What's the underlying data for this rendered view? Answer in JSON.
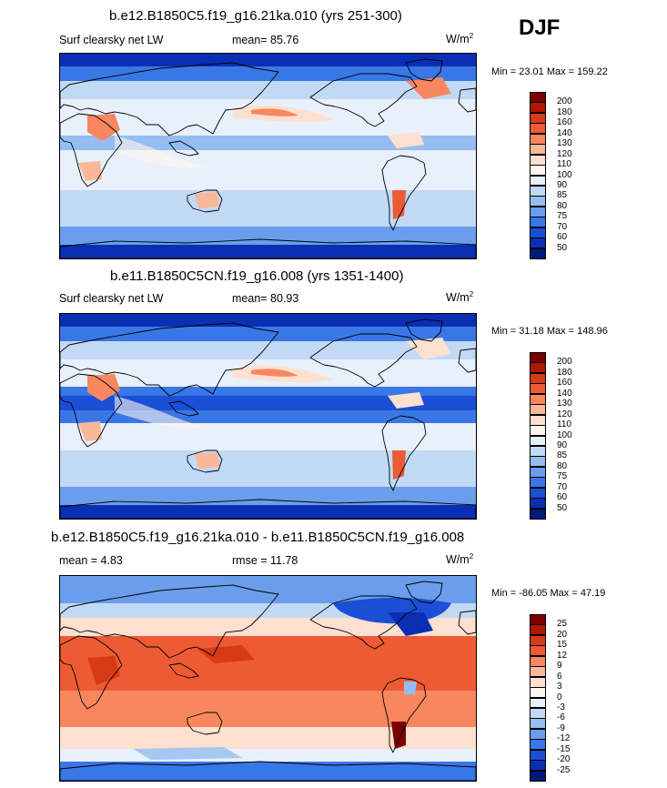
{
  "season": "DJF",
  "panels": [
    {
      "title": "b.e12.B1850C5.f19_g16.21ka.010 (yrs 251-300)",
      "left_text": "Surf clearsky net LW",
      "mean_text": "mean=  85.76",
      "units_main": "W/m",
      "units_exp": "2",
      "minmax": "Min = 23.01 Max = 159.22",
      "colorbar": {
        "labels": [
          "200",
          "180",
          "160",
          "140",
          "130",
          "120",
          "110",
          "100",
          "90",
          "85",
          "80",
          "75",
          "70",
          "60",
          "50"
        ],
        "colors": [
          "#7a0000",
          "#b01800",
          "#d63a16",
          "#ee5a34",
          "#f8875f",
          "#fbb79a",
          "#fde0cf",
          "#fff7ee",
          "#e8f0fb",
          "#c2d9f6",
          "#95bdf0",
          "#6a9deb",
          "#3a77e6",
          "#1b4fd6",
          "#0a2fb4",
          "#001a78"
        ]
      },
      "field_mode": "abs1"
    },
    {
      "title": "b.e11.B1850C5CN.f19_g16.008 (yrs 1351-1400)",
      "left_text": "Surf clearsky net LW",
      "mean_text": "mean=  80.93",
      "units_main": "W/m",
      "units_exp": "2",
      "minmax": "Min = 31.18 Max = 148.96",
      "colorbar": {
        "labels": [
          "200",
          "180",
          "160",
          "140",
          "130",
          "120",
          "110",
          "100",
          "90",
          "85",
          "80",
          "75",
          "70",
          "60",
          "50"
        ],
        "colors": [
          "#7a0000",
          "#b01800",
          "#d63a16",
          "#ee5a34",
          "#f8875f",
          "#fbb79a",
          "#fde0cf",
          "#fff7ee",
          "#e8f0fb",
          "#c2d9f6",
          "#95bdf0",
          "#6a9deb",
          "#3a77e6",
          "#1b4fd6",
          "#0a2fb4",
          "#001a78"
        ]
      },
      "field_mode": "abs2"
    },
    {
      "title": "b.e12.B1850C5.f19_g16.21ka.010 - b.e11.B1850C5CN.f19_g16.008",
      "left_text": "mean =  4.83",
      "mean_text": "rmse =  11.78",
      "units_main": "W/m",
      "units_exp": "2",
      "minmax": "Min = -86.05 Max = 47.19",
      "colorbar": {
        "labels": [
          "25",
          "20",
          "15",
          "12",
          "9",
          "6",
          "3",
          "0",
          "-3",
          "-6",
          "-9",
          "-12",
          "-15",
          "-20",
          "-25"
        ],
        "colors": [
          "#7a0000",
          "#b01800",
          "#d63a16",
          "#ee5a34",
          "#f8875f",
          "#fbb79a",
          "#fde0cf",
          "#fff7ee",
          "#e8f0fb",
          "#c2d9f6",
          "#95bdf0",
          "#6a9deb",
          "#3a77e6",
          "#1b4fd6",
          "#0a2fb4",
          "#001a78"
        ]
      },
      "field_mode": "diff"
    }
  ]
}
